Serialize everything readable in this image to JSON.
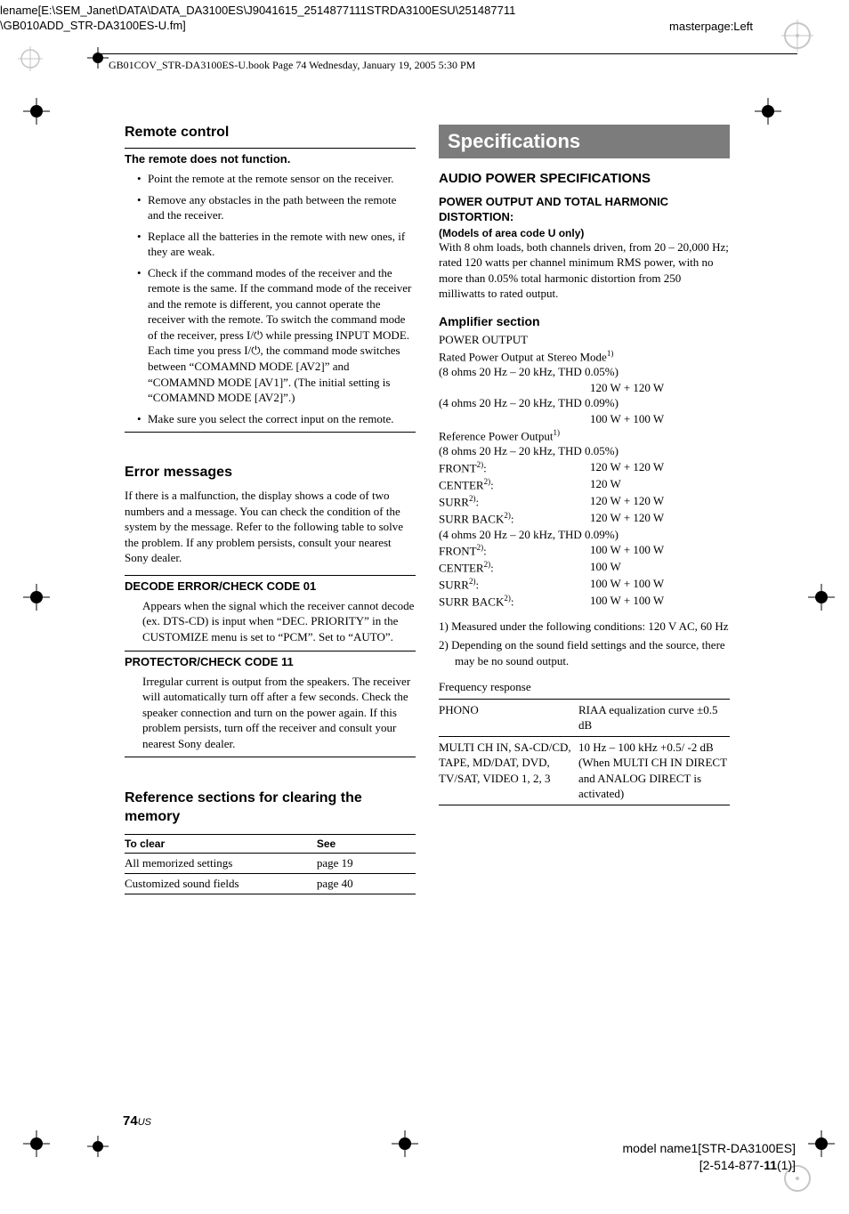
{
  "header": {
    "path_line1": "lename[E:\\SEM_Janet\\DATA\\DATA_DA3100ES\\J9041615_2514877111STRDA3100ESU\\251487711",
    "path_line2": "\\GB010ADD_STR-DA3100ES-U.fm]",
    "masterpage": "masterpage:Left",
    "page_info": "GB01COV_STR-DA3100ES-U.book  Page 74  Wednesday, January 19, 2005  5:30 PM"
  },
  "left": {
    "remote": {
      "title": "Remote control",
      "sub": "The remote does not function.",
      "bullets": [
        "Point the remote at the remote sensor on the receiver.",
        "Remove any obstacles in the path between the remote and the receiver.",
        "Replace all the batteries in the remote with new ones, if they are weak.",
        "Check if the command modes of the receiver and the remote is the same. If the command mode of the receiver and the remote is different, you cannot operate the receiver with the remote. To switch the command mode of the receiver, press I/⏻ while pressing INPUT MODE. Each time you press I/⏻, the command mode switches between “COMAMND MODE [AV2]” and “COMAMND MODE [AV1]”. (The initial setting is “COMAMND MODE [AV2]”.)",
        "Make sure you select the correct input on the remote."
      ]
    },
    "errors": {
      "title": "Error messages",
      "intro": "If there is a malfunction, the display shows a code of two numbers and a message. You can check the condition of the system by the message. Refer to the following table to solve the problem. If any problem persists, consult your nearest Sony dealer.",
      "e1_title": "DECODE ERROR/CHECK CODE 01",
      "e1_body": "Appears when the signal which the receiver cannot decode (ex. DTS-CD) is input when “DEC. PRIORITY” in the CUSTOMIZE menu is set to “PCM”. Set to “AUTO”.",
      "e2_title": "PROTECTOR/CHECK CODE 11",
      "e2_body": "Irregular current is output from the speakers. The receiver will automatically turn off after a few seconds. Check the speaker connection and turn on the power again. If this problem persists, turn off the receiver and consult your nearest Sony dealer."
    },
    "ref": {
      "title": "Reference sections for clearing the memory",
      "col1": "To clear",
      "col2": "See",
      "rows": [
        [
          "All memorized settings",
          "page 19"
        ],
        [
          "Customized sound fields",
          "page 40"
        ]
      ]
    }
  },
  "right": {
    "spec_title": "Specifications",
    "audio_title": "AUDIO POWER SPECIFICATIONS",
    "power_title": "POWER OUTPUT AND TOTAL HARMONIC DISTORTION:",
    "power_sub": "(Models of area code U only)",
    "power_body": "With 8 ohm loads, both channels driven, from 20 – 20,000 Hz; rated 120 watts per channel minimum RMS power, with no more than 0.05% total harmonic distortion from 250 milliwatts to rated output.",
    "amp_title": "Amplifier section",
    "amp": {
      "po": "POWER OUTPUT",
      "rated": "Rated Power Output at Stereo Mode",
      "l1": "(8 ohms 20 Hz – 20 kHz, THD 0.05%)",
      "v1": "120 W + 120 W",
      "l2": "(4 ohms 20 Hz – 20 kHz, THD 0.09%)",
      "v2": "100 W + 100 W",
      "ref": "Reference Power Output",
      "l3": "(8 ohms 20 Hz – 20 kHz, THD 0.05%)",
      "rows8": [
        [
          "FRONT",
          "120 W + 120 W"
        ],
        [
          "CENTER",
          "120 W"
        ],
        [
          "SURR",
          "120 W + 120 W"
        ],
        [
          "SURR BACK",
          "120 W + 120 W"
        ]
      ],
      "l4": "(4 ohms 20 Hz – 20 kHz, THD 0.09%)",
      "rows4": [
        [
          "FRONT",
          "100 W + 100 W"
        ],
        [
          "CENTER",
          "100 W"
        ],
        [
          "SURR",
          "100 W + 100 W"
        ],
        [
          "SURR BACK",
          "100 W + 100 W"
        ]
      ]
    },
    "notes": {
      "n1": "1) Measured under the following conditions: 120 V AC, 60 Hz",
      "n2": "2) Depending on the sound field settings and the source, there may be no sound output."
    },
    "freq_title": "Frequency response",
    "freq_rows": [
      [
        "PHONO",
        "RIAA equalization curve ±0.5 dB"
      ],
      [
        "MULTI CH IN, SA-CD/CD, TAPE, MD/DAT, DVD, TV/SAT, VIDEO 1, 2, 3",
        "10 Hz – 100 kHz +0.5/ -2 dB (When MULTI CH IN DIRECT and ANALOG DIRECT is activated)"
      ]
    ]
  },
  "footer": {
    "page_num": "74",
    "page_region": "US",
    "model": "model name1[STR-DA3100ES]",
    "code": "[2-514-877-11(1)]"
  },
  "crop_color": "#808080",
  "accent_box_bg": "#7c7c7c"
}
